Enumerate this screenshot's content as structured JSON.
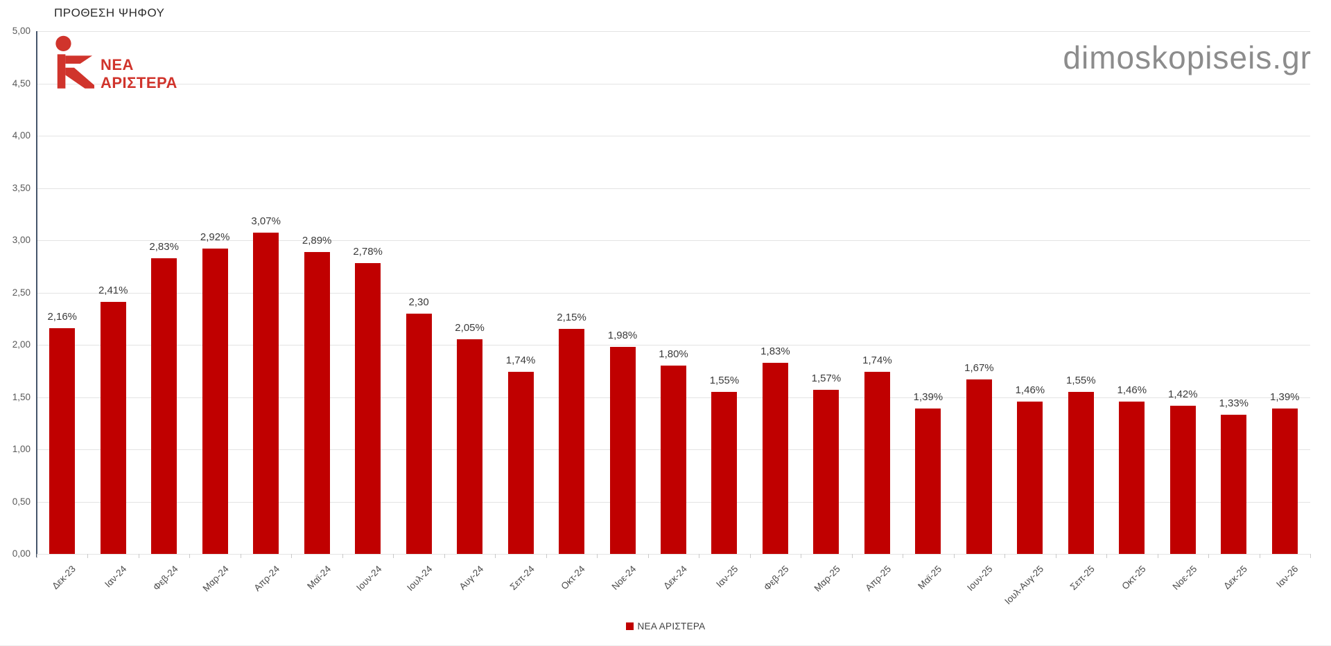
{
  "page": {
    "title": "ΠΡΟΘΕΣΗ ΨΗΦΟΥ",
    "watermark": "dimoskopiseis.gr"
  },
  "logo": {
    "line1": "ΝΕΑ",
    "line2": "ΑΡΙΣΤΕΡΑ",
    "color": "#d0342c"
  },
  "legend": {
    "label": "ΝΕΑ ΑΡΙΣΤΕΡΑ",
    "color": "#c00000"
  },
  "chart_data": {
    "type": "bar",
    "title": "ΠΡΟΘΕΣΗ ΨΗΦΟΥ",
    "series_name": "ΝΕΑ ΑΡΙΣΤΕΡΑ",
    "bar_color": "#c00000",
    "categories": [
      "Δεκ-23",
      "Ιαν-24",
      "Φεβ-24",
      "Μαρ-24",
      "Απρ-24",
      "Μαϊ-24",
      "Ιουν-24",
      "Ιουλ-24",
      "Αυγ-24",
      "Σεπ-24",
      "Οκτ-24",
      "Νοε-24",
      "Δεκ-24",
      "Ιαν-25",
      "Φεβ-25",
      "Μαρ-25",
      "Απρ-25",
      "Μαϊ-25",
      "Ιουν-25",
      "Ιουλ-Αυγ-25",
      "Σεπ-25",
      "Οκτ-25",
      "Νοε-25",
      "Δεκ-25",
      "Ιαν-26"
    ],
    "values": [
      2.16,
      2.41,
      2.83,
      2.92,
      3.07,
      2.89,
      2.78,
      2.3,
      2.05,
      1.74,
      2.15,
      1.98,
      1.8,
      1.55,
      1.83,
      1.57,
      1.74,
      1.39,
      1.67,
      1.46,
      1.55,
      1.46,
      1.42,
      1.33,
      1.39
    ],
    "value_labels": [
      "2,16%",
      "2,41%",
      "2,83%",
      "2,92%",
      "3,07%",
      "2,89%",
      "2,78%",
      "2,30",
      "2,05%",
      "1,74%",
      "2,15%",
      "1,98%",
      "1,80%",
      "1,55%",
      "1,83%",
      "1,57%",
      "1,74%",
      "1,39%",
      "1,67%",
      "1,46%",
      "1,55%",
      "1,46%",
      "1,42%",
      "1,33%",
      "1,39%"
    ],
    "ylim": [
      0,
      5
    ],
    "ytick_step": 0.5,
    "ytick_labels": [
      "0,00",
      "0,50",
      "1,00",
      "1,50",
      "2,00",
      "2,50",
      "3,00",
      "3,50",
      "4,00",
      "4,50",
      "5,00"
    ],
    "grid": true,
    "legend_position": "bottom"
  }
}
